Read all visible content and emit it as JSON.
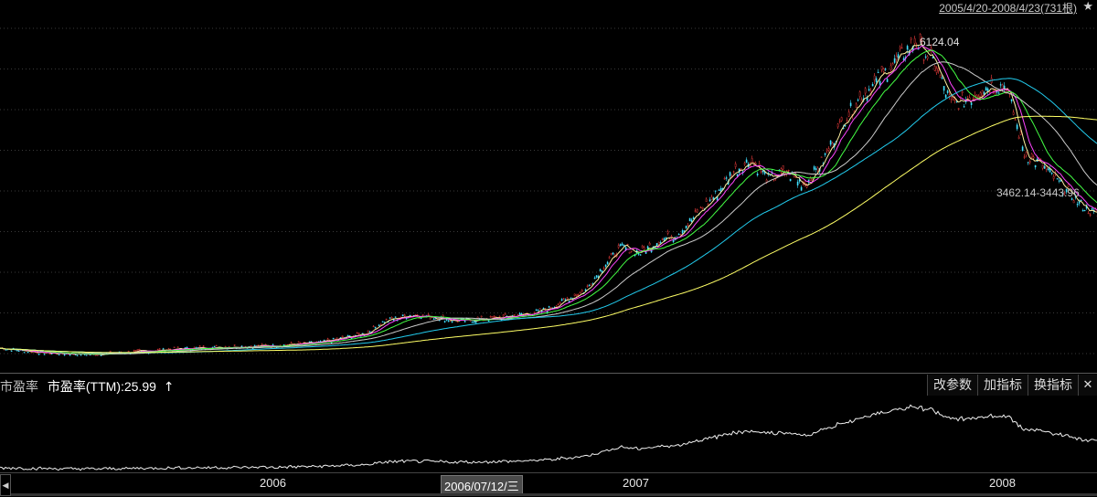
{
  "header": {
    "range_label": "2005/4/20-2008/4/23(731根)",
    "star_icon": "star-icon"
  },
  "main_chart": {
    "annotations": {
      "high_label": "6124.04",
      "range_label": "3462.14-3443.96"
    },
    "colors": {
      "candle_up": "#ff4040",
      "candle_down": "#40e0ff",
      "ma_yellow": "#ffff66",
      "ma_cyan": "#22ccee",
      "ma_white": "#cccccc",
      "ma_magenta": "#ff44ff",
      "ma_green": "#44ff44",
      "ma_light_yellow": "#fff0a0"
    }
  },
  "indicator": {
    "title": "市盈率",
    "subtitle": "市盈率(TTM):25.99",
    "arrow": "↑",
    "buttons": {
      "change_params": "改参数",
      "add_indicator": "加指标",
      "switch_indicator": "换指标",
      "close": "✕"
    }
  },
  "time_axis": {
    "ticks": [
      "2006",
      "2007",
      "2008"
    ],
    "cursor_date": "2006/07/12/三",
    "scroll_left": "◀"
  },
  "chart_data": {
    "type": "line",
    "series": [
      {
        "x": [
          0,
          50,
          100,
          150,
          200,
          250,
          300,
          350,
          400,
          420,
          450,
          480,
          500,
          520,
          540,
          560,
          580,
          600,
          620,
          640,
          660,
          680,
          700,
          720,
          740,
          760,
          780,
          800,
          820,
          840,
          860,
          880,
          900,
          920,
          940,
          960,
          980,
          1000,
          1020,
          1040,
          1060,
          1080,
          1100,
          1120,
          1140,
          1160,
          1180,
          1200
        ],
        "values": [
          1160,
          1080,
          1060,
          1100,
          1150,
          1180,
          1200,
          1250,
          1400,
          1600,
          1700,
          1650,
          1600,
          1620,
          1640,
          1680,
          1720,
          1800,
          1950,
          2100,
          2500,
          2800,
          2700,
          2900,
          3000,
          3300,
          3600,
          4000,
          4200,
          3900,
          4000,
          3800,
          4200,
          4800,
          5200,
          5500,
          5800,
          6124,
          5800,
          5100,
          5200,
          5400,
          5400,
          4300,
          4100,
          3800,
          3500,
          3300
        ]
      }
    ],
    "ylim": [
      998,
      6200
    ]
  }
}
